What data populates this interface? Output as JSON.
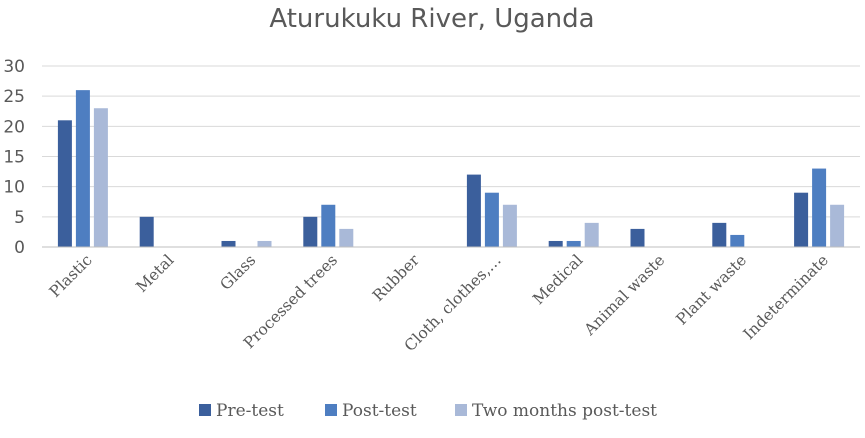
{
  "chart_data": {
    "type": "bar",
    "title": "Aturukuku River, Uganda",
    "categories": [
      "Plastic",
      "Metal",
      "Glass",
      "Processed trees",
      "Rubber",
      "Cloth, clothes,…",
      "Medical",
      "Animal waste",
      "Plant waste",
      "Indeterminate"
    ],
    "series": [
      {
        "name": "Pre-test",
        "color": "#3b5f9c",
        "values": [
          21,
          5,
          1,
          5,
          0,
          12,
          1,
          3,
          4,
          9
        ]
      },
      {
        "name": "Post-test",
        "color": "#4e7ec1",
        "values": [
          26,
          0,
          0,
          7,
          0,
          9,
          1,
          0,
          2,
          13
        ]
      },
      {
        "name": "Two months post-test",
        "color": "#a9b9d8",
        "values": [
          23,
          0,
          1,
          3,
          0,
          7,
          4,
          0,
          0,
          7
        ]
      }
    ],
    "ylim": [
      0,
      30
    ],
    "yticks": [
      0,
      5,
      10,
      15,
      20,
      25,
      30
    ],
    "grid": true,
    "legend": "bottom"
  }
}
